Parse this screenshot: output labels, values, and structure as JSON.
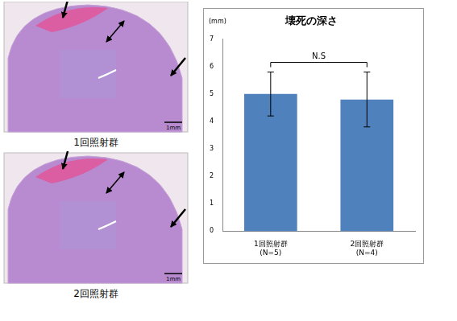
{
  "chart_data": {
    "type": "bar",
    "title": "壊死の深さ",
    "y_unit_label": "(mm)",
    "categories": [
      "1回照射群",
      "2回照射群"
    ],
    "sample_size_labels": [
      "(N=5)",
      "(N=4)"
    ],
    "values": [
      5.0,
      4.8
    ],
    "errors": [
      0.8,
      1.0
    ],
    "color": "#4f81bd",
    "annotation": "N.S",
    "ylim": [
      0,
      7
    ],
    "yticks": [
      0,
      1,
      2,
      3,
      4,
      5,
      6,
      7
    ],
    "grid": false
  },
  "images": [
    {
      "caption": "1回照射群",
      "scale_label": "1mm"
    },
    {
      "caption": "2回照射群",
      "scale_label": "1mm"
    }
  ]
}
